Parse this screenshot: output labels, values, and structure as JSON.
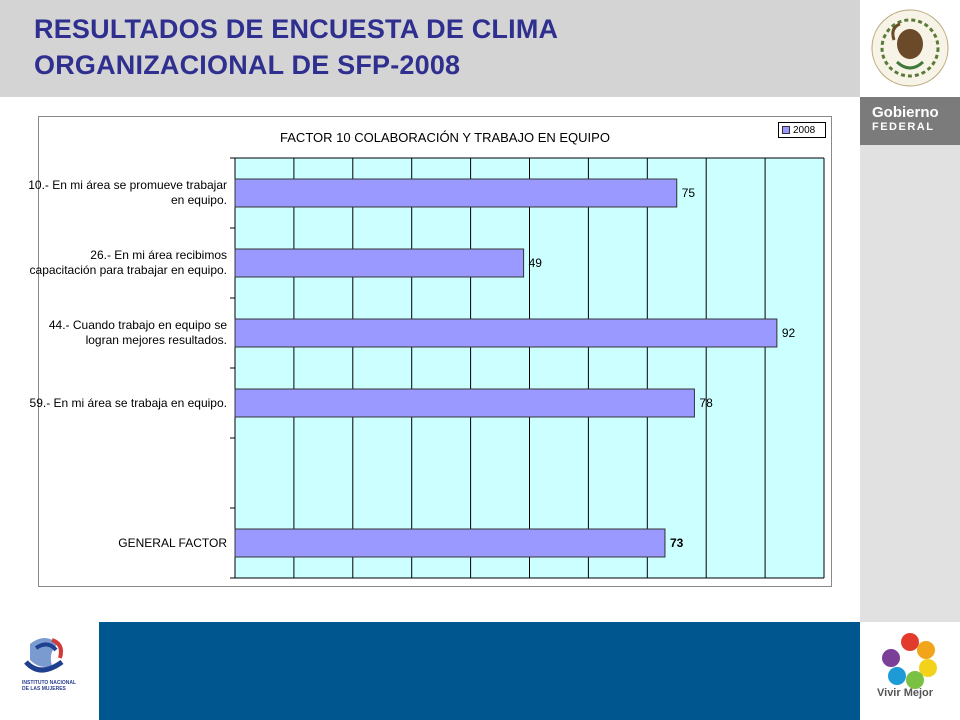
{
  "header": {
    "title_line1": "RESULTADOS DE ENCUESTA DE CLIMA",
    "title_line2": "ORGANIZACIONAL  DE SFP-2008"
  },
  "branding": {
    "emblem_text": "ESTADOS UNIDOS MEXICANOS",
    "gov_line1": "Gobierno",
    "gov_line2": "FEDERAL",
    "inm_text": "INSTITUTO NACIONAL DE LAS MUJERES",
    "vivir_mejor": "Vivir Mejor"
  },
  "colors": {
    "title": "#2f2f8f",
    "plot_bg": "#ccffff",
    "bar": "#9999ff",
    "band": "#00568f"
  },
  "chart_data": {
    "type": "bar",
    "orientation": "horizontal",
    "title": "FACTOR  10 COLABORACIÓN Y TRABAJO EN EQUIPO",
    "categories": [
      "10.-  En mi área se promueve trabajar en equipo.",
      "26.-  En mi área recibimos capacitación para trabajar en equipo.",
      "44.-  Cuando trabajo en equipo se logran mejores resultados.",
      "59.-  En mi área se trabaja en equipo.",
      "",
      "GENERAL FACTOR"
    ],
    "series": [
      {
        "name": "2008",
        "values": [
          75,
          49,
          92,
          78,
          null,
          73
        ]
      }
    ],
    "data_labels": [
      "75",
      "49",
      "92",
      "78",
      "",
      "73"
    ],
    "xlim": [
      0,
      100
    ],
    "grid": true,
    "legend": "top-right"
  }
}
